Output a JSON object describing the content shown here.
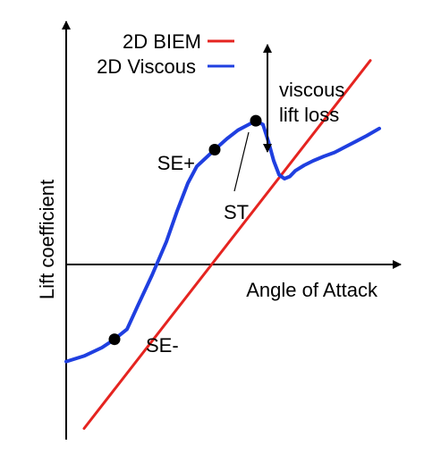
{
  "chart_data": {
    "type": "line",
    "title": "",
    "xlabel": "Angle of Attack",
    "ylabel": "Lift coefficient",
    "xlim": [
      -4,
      14
    ],
    "ylim": [
      -3,
      4.5
    ],
    "grid": false,
    "legend_placement": "top-center",
    "series": [
      {
        "name": "2D BIEM",
        "color": "#e52420",
        "x": [
          -3,
          13
        ],
        "y": [
          -2.8,
          3.8
        ]
      },
      {
        "name": "2D Viscous",
        "color": "#1f3fe0",
        "x": [
          -4,
          -3.0,
          -2.0,
          -1.3,
          -0.6,
          0.0,
          0.8,
          1.6,
          2.2,
          2.8,
          3.3,
          3.8,
          4.3,
          5.0,
          5.6,
          6.2,
          6.6,
          7.0,
          7.3,
          7.6,
          7.9,
          8.2,
          8.5,
          8.8,
          9.3,
          9.8,
          10.4,
          11.0,
          11.6,
          12.2,
          12.8,
          13.5
        ],
        "y": [
          -1.6,
          -1.5,
          -1.35,
          -1.2,
          -1.02,
          -0.6,
          -0.05,
          0.55,
          1.1,
          1.6,
          1.9,
          2.05,
          2.2,
          2.4,
          2.55,
          2.65,
          2.72,
          2.65,
          2.35,
          2.0,
          1.75,
          1.68,
          1.72,
          1.82,
          1.92,
          2.0,
          2.08,
          2.15,
          2.25,
          2.35,
          2.45,
          2.58
        ]
      }
    ],
    "points": [
      {
        "label": "SE-",
        "x": -1.3,
        "y": -1.2
      },
      {
        "label": "SE+",
        "x": 4.3,
        "y": 2.2
      },
      {
        "label": "ST",
        "x": 6.6,
        "y": 2.72
      }
    ],
    "annotations": {
      "viscous_lift_loss": [
        "viscous",
        "lift loss"
      ],
      "st_label": "ST"
    }
  }
}
